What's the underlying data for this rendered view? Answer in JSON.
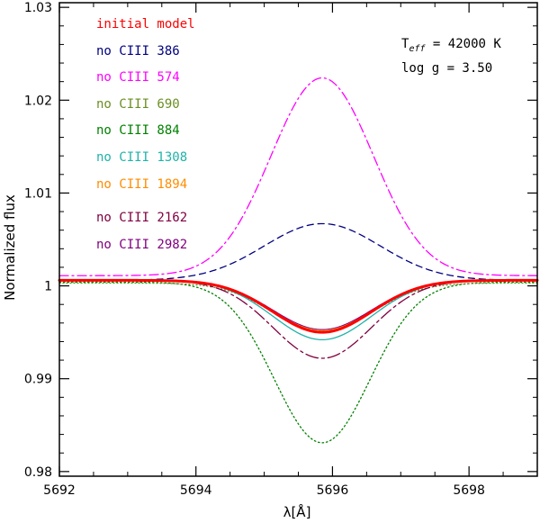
{
  "chart_data": {
    "type": "line",
    "xlabel": "λ[Å]",
    "ylabel": "Normalized flux",
    "xlim": [
      5692,
      5699
    ],
    "ylim": [
      0.9795,
      1.0305
    ],
    "x_ticks": [
      5692,
      5694,
      5696,
      5698
    ],
    "y_ticks": [
      0.98,
      0.99,
      1,
      1.01,
      1.02,
      1.03
    ],
    "x_tick_labels": [
      "5692",
      "5694",
      "5696",
      "5698"
    ],
    "y_tick_labels": [
      "0.98",
      "0.99",
      "1",
      "1.01",
      "1.02",
      "1.03"
    ],
    "line_center": 5695.85,
    "annotations": {
      "teff_main": "T",
      "teff_sub": "eff",
      "teff_rest": " = 42000 K",
      "logg": "log g = 3.50"
    },
    "legend_placement": "top-left",
    "series": [
      {
        "name": "initial model",
        "color": "#ff0000",
        "dash": "solid",
        "width": 3.0,
        "baseline": 1.0006,
        "amplitude": -0.0056,
        "sigma": 0.72
      },
      {
        "name": "no CIII 386",
        "color": "#000080",
        "dash": "dashed",
        "width": 1.3,
        "baseline": 1.0006,
        "amplitude": 0.0061,
        "sigma": 0.85
      },
      {
        "name": "no CIII 574",
        "color": "#ff00ff",
        "dash": "dashdot",
        "width": 1.3,
        "baseline": 1.0011,
        "amplitude": 0.0213,
        "sigma": 0.75
      },
      {
        "name": "no CIII 690",
        "color": "#6b8e23",
        "dash": "dotted-light",
        "width": 1.3,
        "baseline": 1.0003,
        "amplitude": -0.0052,
        "sigma": 0.72
      },
      {
        "name": "no CIII 884",
        "color": "#008000",
        "dash": "dotted",
        "width": 1.3,
        "baseline": 1.0004,
        "amplitude": -0.0173,
        "sigma": 0.7
      },
      {
        "name": "no CIII 1308",
        "color": "#20b2aa",
        "dash": "solid",
        "width": 1.3,
        "baseline": 1.0006,
        "amplitude": -0.0064,
        "sigma": 0.72
      },
      {
        "name": "no CIII 1894",
        "color": "#ff8c00",
        "dash": "solid",
        "width": 1.0,
        "baseline": 1.0006,
        "amplitude": -0.0054,
        "sigma": 0.72
      },
      {
        "name": "no CIII 2162",
        "color": "#800040",
        "dash": "longdash",
        "width": 1.3,
        "baseline": 1.0006,
        "amplitude": -0.0084,
        "sigma": 0.72
      },
      {
        "name": "no CIII 2982",
        "color": "#800080",
        "dash": "solid",
        "width": 1.0,
        "baseline": 1.0006,
        "amplitude": -0.0053,
        "sigma": 0.72
      }
    ]
  }
}
